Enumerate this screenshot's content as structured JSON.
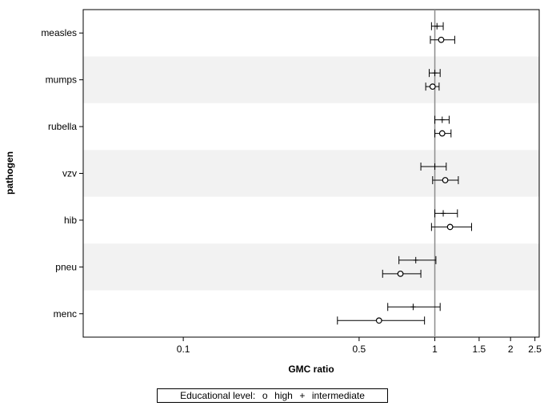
{
  "chart_data": {
    "type": "forest",
    "xscale": "log",
    "xlim": [
      0.04,
      2.6
    ],
    "xticks": [
      0.1,
      0.5,
      1,
      1.5,
      2,
      2.5
    ],
    "xtick_labels": [
      "0.1",
      "0.5",
      "1",
      "1.5",
      "2",
      "2.5"
    ],
    "reference_line": 1,
    "xlabel": "GMC ratio",
    "ylabel": "pathogen",
    "categories": [
      "measles",
      "mumps",
      "rubella",
      "vzv",
      "hib",
      "pneu",
      "menc"
    ],
    "band_colors": [
      "#ffffff",
      "#f2f2f2"
    ],
    "series": [
      {
        "name": "intermediate",
        "marker": "+",
        "estimates": [
          1.02,
          1.0,
          1.07,
          1.0,
          1.08,
          0.84,
          0.82
        ],
        "ci_low": [
          0.97,
          0.95,
          1.0,
          0.88,
          1.0,
          0.72,
          0.65
        ],
        "ci_high": [
          1.08,
          1.05,
          1.14,
          1.11,
          1.23,
          1.01,
          1.05
        ]
      },
      {
        "name": "high",
        "marker": "o",
        "estimates": [
          1.06,
          0.98,
          1.07,
          1.1,
          1.15,
          0.73,
          0.6
        ],
        "ci_low": [
          0.96,
          0.92,
          1.0,
          0.98,
          0.97,
          0.62,
          0.41
        ],
        "ci_high": [
          1.2,
          1.04,
          1.16,
          1.24,
          1.4,
          0.88,
          0.91
        ]
      }
    ],
    "legend": {
      "title": "Educational level:",
      "entries": [
        {
          "symbol": "o",
          "label": "high"
        },
        {
          "symbol": "+",
          "label": "intermediate"
        }
      ]
    }
  }
}
